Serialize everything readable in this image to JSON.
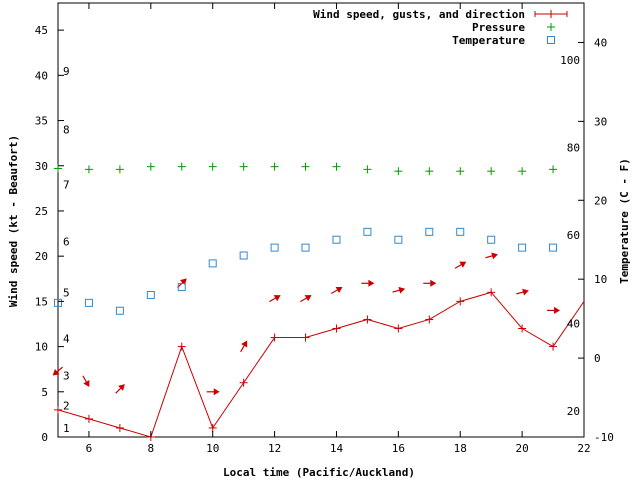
{
  "chart_data": {
    "type": "line",
    "xlabel": "Local time (Pacific/Auckland)",
    "ylabel": "Wind speed (kt - Beaufort)",
    "y2label": "Temperature (C - F)",
    "xlim": [
      5,
      22
    ],
    "ylim": [
      0,
      48
    ],
    "y2lim": [
      -10,
      45
    ],
    "x_ticks": [
      6,
      8,
      10,
      12,
      14,
      16,
      18,
      20,
      22
    ],
    "y_ticks": [
      0,
      5,
      10,
      15,
      20,
      25,
      30,
      35,
      40,
      45
    ],
    "y2_ticks": [
      -10,
      0,
      10,
      20,
      30,
      40
    ],
    "beaufort_ticks": [
      {
        "label": "1",
        "kt": 1.0
      },
      {
        "label": "2",
        "kt": 3.5
      },
      {
        "label": "3",
        "kt": 6.8
      },
      {
        "label": "4",
        "kt": 10.9
      },
      {
        "label": "5",
        "kt": 16.0
      },
      {
        "label": "6",
        "kt": 21.6
      },
      {
        "label": "7",
        "kt": 27.9
      },
      {
        "label": "8",
        "kt": 34.0
      },
      {
        "label": "9",
        "kt": 40.5
      }
    ],
    "fahrenheit_ticks": [
      {
        "label": "20",
        "c": -6.7
      },
      {
        "label": "40",
        "c": 4.4
      },
      {
        "label": "60",
        "c": 15.6
      },
      {
        "label": "80",
        "c": 26.7
      },
      {
        "label": "100",
        "c": 37.8
      }
    ],
    "legend_position": "top-right",
    "series": [
      {
        "name": "Wind speed, gusts, and direction",
        "color": "#cc0000",
        "x": [
          5,
          6,
          7,
          8,
          9,
          10,
          11,
          12,
          13,
          14,
          15,
          16,
          17,
          18,
          19,
          20,
          21,
          22
        ],
        "values": [
          3,
          2,
          1,
          0,
          10,
          1,
          6,
          11,
          11,
          12,
          13,
          12,
          13,
          15,
          16,
          12,
          10,
          15
        ],
        "direction_arrows": [
          {
            "x": 5.0,
            "y": 7.3,
            "deg": 220
          },
          {
            "x": 5.9,
            "y": 6.2,
            "deg": 300
          },
          {
            "x": 7.0,
            "y": 5.3,
            "deg": 45
          },
          {
            "x": 10.0,
            "y": 5.0,
            "deg": 0
          },
          {
            "x": 9.0,
            "y": 17.0,
            "deg": 45
          },
          {
            "x": 11.0,
            "y": 10.0,
            "deg": 60
          },
          {
            "x": 12.0,
            "y": 15.3,
            "deg": 30
          },
          {
            "x": 13.0,
            "y": 15.3,
            "deg": 30
          },
          {
            "x": 14.0,
            "y": 16.2,
            "deg": 30
          },
          {
            "x": 15.0,
            "y": 17.0,
            "deg": 0
          },
          {
            "x": 16.0,
            "y": 16.2,
            "deg": 15
          },
          {
            "x": 17.0,
            "y": 17.0,
            "deg": 0
          },
          {
            "x": 18.0,
            "y": 19.0,
            "deg": 30
          },
          {
            "x": 19.0,
            "y": 20.0,
            "deg": 15
          },
          {
            "x": 20.0,
            "y": 16.0,
            "deg": 15
          },
          {
            "x": 21.0,
            "y": 14.0,
            "deg": 0
          }
        ]
      },
      {
        "name": "Pressure",
        "color": "#009900",
        "x": [
          5,
          6,
          7,
          8,
          9,
          10,
          11,
          12,
          13,
          14,
          15,
          16,
          17,
          18,
          19,
          20,
          21
        ],
        "values": [
          29.7,
          29.6,
          29.6,
          29.9,
          29.9,
          29.9,
          29.9,
          29.9,
          29.9,
          29.9,
          29.6,
          29.4,
          29.4,
          29.4,
          29.4,
          29.4,
          29.6
        ]
      },
      {
        "name": "Temperature",
        "color": "#3388cc",
        "axis": "y2",
        "x": [
          5,
          6,
          7,
          8,
          9,
          10,
          11,
          12,
          13,
          14,
          15,
          16,
          17,
          18,
          19,
          20,
          21
        ],
        "values": [
          7,
          7,
          6,
          8,
          9,
          12,
          13,
          14,
          14,
          15,
          16,
          15,
          16,
          16,
          15,
          14,
          14
        ]
      }
    ]
  }
}
